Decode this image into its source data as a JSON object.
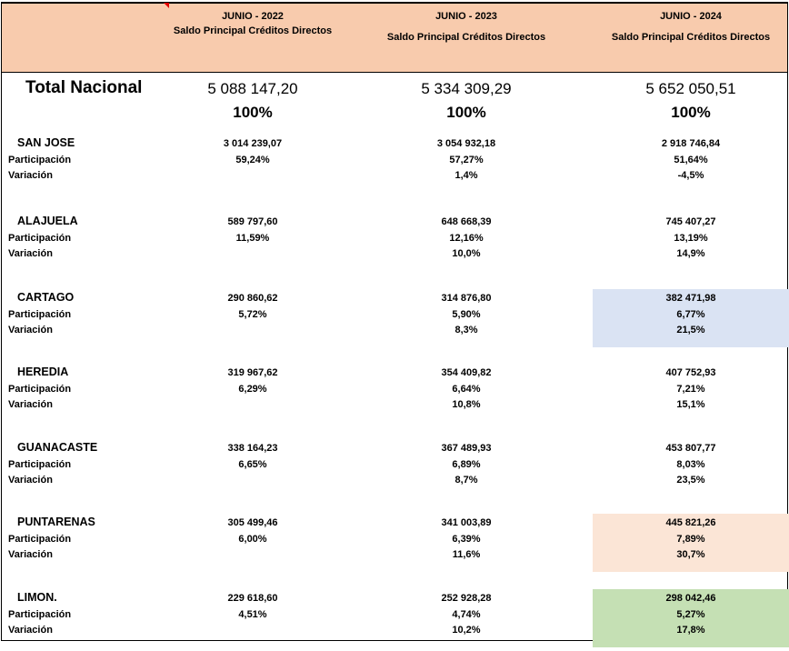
{
  "columns": [
    {
      "year": "JUNIO - 2022",
      "subtitle": "Saldo Principal Créditos Directos"
    },
    {
      "year": "JUNIO - 2023",
      "subtitle": "Saldo Principal Créditos Directos"
    },
    {
      "year": "JUNIO - 2024",
      "subtitle": "Saldo Principal Créditos Directos"
    }
  ],
  "total": {
    "label": "Total Nacional",
    "values": [
      "5 088 147,20",
      "5 334 309,29",
      "5 652 050,51"
    ],
    "pct": [
      "100%",
      "100%",
      "100%"
    ]
  },
  "row_labels": {
    "participation": "Participación",
    "variation": "Variación"
  },
  "highlight_colors": {
    "CARTAGO": "#dae3f3",
    "PUNTARENAS": "#fbe5d6",
    "LIMON.": "#c5e0b4"
  },
  "provinces": [
    {
      "name": "SAN JOSE",
      "values": [
        "3 014 239,07",
        "3 054 932,18",
        "2 918 746,84"
      ],
      "participation": [
        "59,24%",
        "57,27%",
        "51,64%"
      ],
      "variation": [
        "",
        "1,4%",
        "-4,5%"
      ]
    },
    {
      "name": "ALAJUELA",
      "values": [
        "589 797,60",
        "648 668,39",
        "745 407,27"
      ],
      "participation": [
        "11,59%",
        "12,16%",
        "13,19%"
      ],
      "variation": [
        "",
        "10,0%",
        "14,9%"
      ]
    },
    {
      "name": "CARTAGO",
      "values": [
        "290 860,62",
        "314 876,80",
        "382 471,98"
      ],
      "participation": [
        "5,72%",
        "5,90%",
        "6,77%"
      ],
      "variation": [
        "",
        "8,3%",
        "21,5%"
      ]
    },
    {
      "name": "HEREDIA",
      "values": [
        "319 967,62",
        "354 409,82",
        "407 752,93"
      ],
      "participation": [
        "6,29%",
        "6,64%",
        "7,21%"
      ],
      "variation": [
        "",
        "10,8%",
        "15,1%"
      ]
    },
    {
      "name": "GUANACASTE",
      "values": [
        "338 164,23",
        "367 489,93",
        "453 807,77"
      ],
      "participation": [
        "6,65%",
        "6,89%",
        "8,03%"
      ],
      "variation": [
        "",
        "8,7%",
        "23,5%"
      ]
    },
    {
      "name": "PUNTARENAS",
      "values": [
        "305 499,46",
        "341 003,89",
        "445 821,26"
      ],
      "participation": [
        "6,00%",
        "6,39%",
        "7,89%"
      ],
      "variation": [
        "",
        "11,6%",
        "30,7%"
      ]
    },
    {
      "name": "LIMON.",
      "values": [
        "229 618,60",
        "252 928,28",
        "298 042,46"
      ],
      "participation": [
        "4,51%",
        "4,74%",
        "5,27%"
      ],
      "variation": [
        "",
        "10,2%",
        "17,8%"
      ]
    }
  ]
}
